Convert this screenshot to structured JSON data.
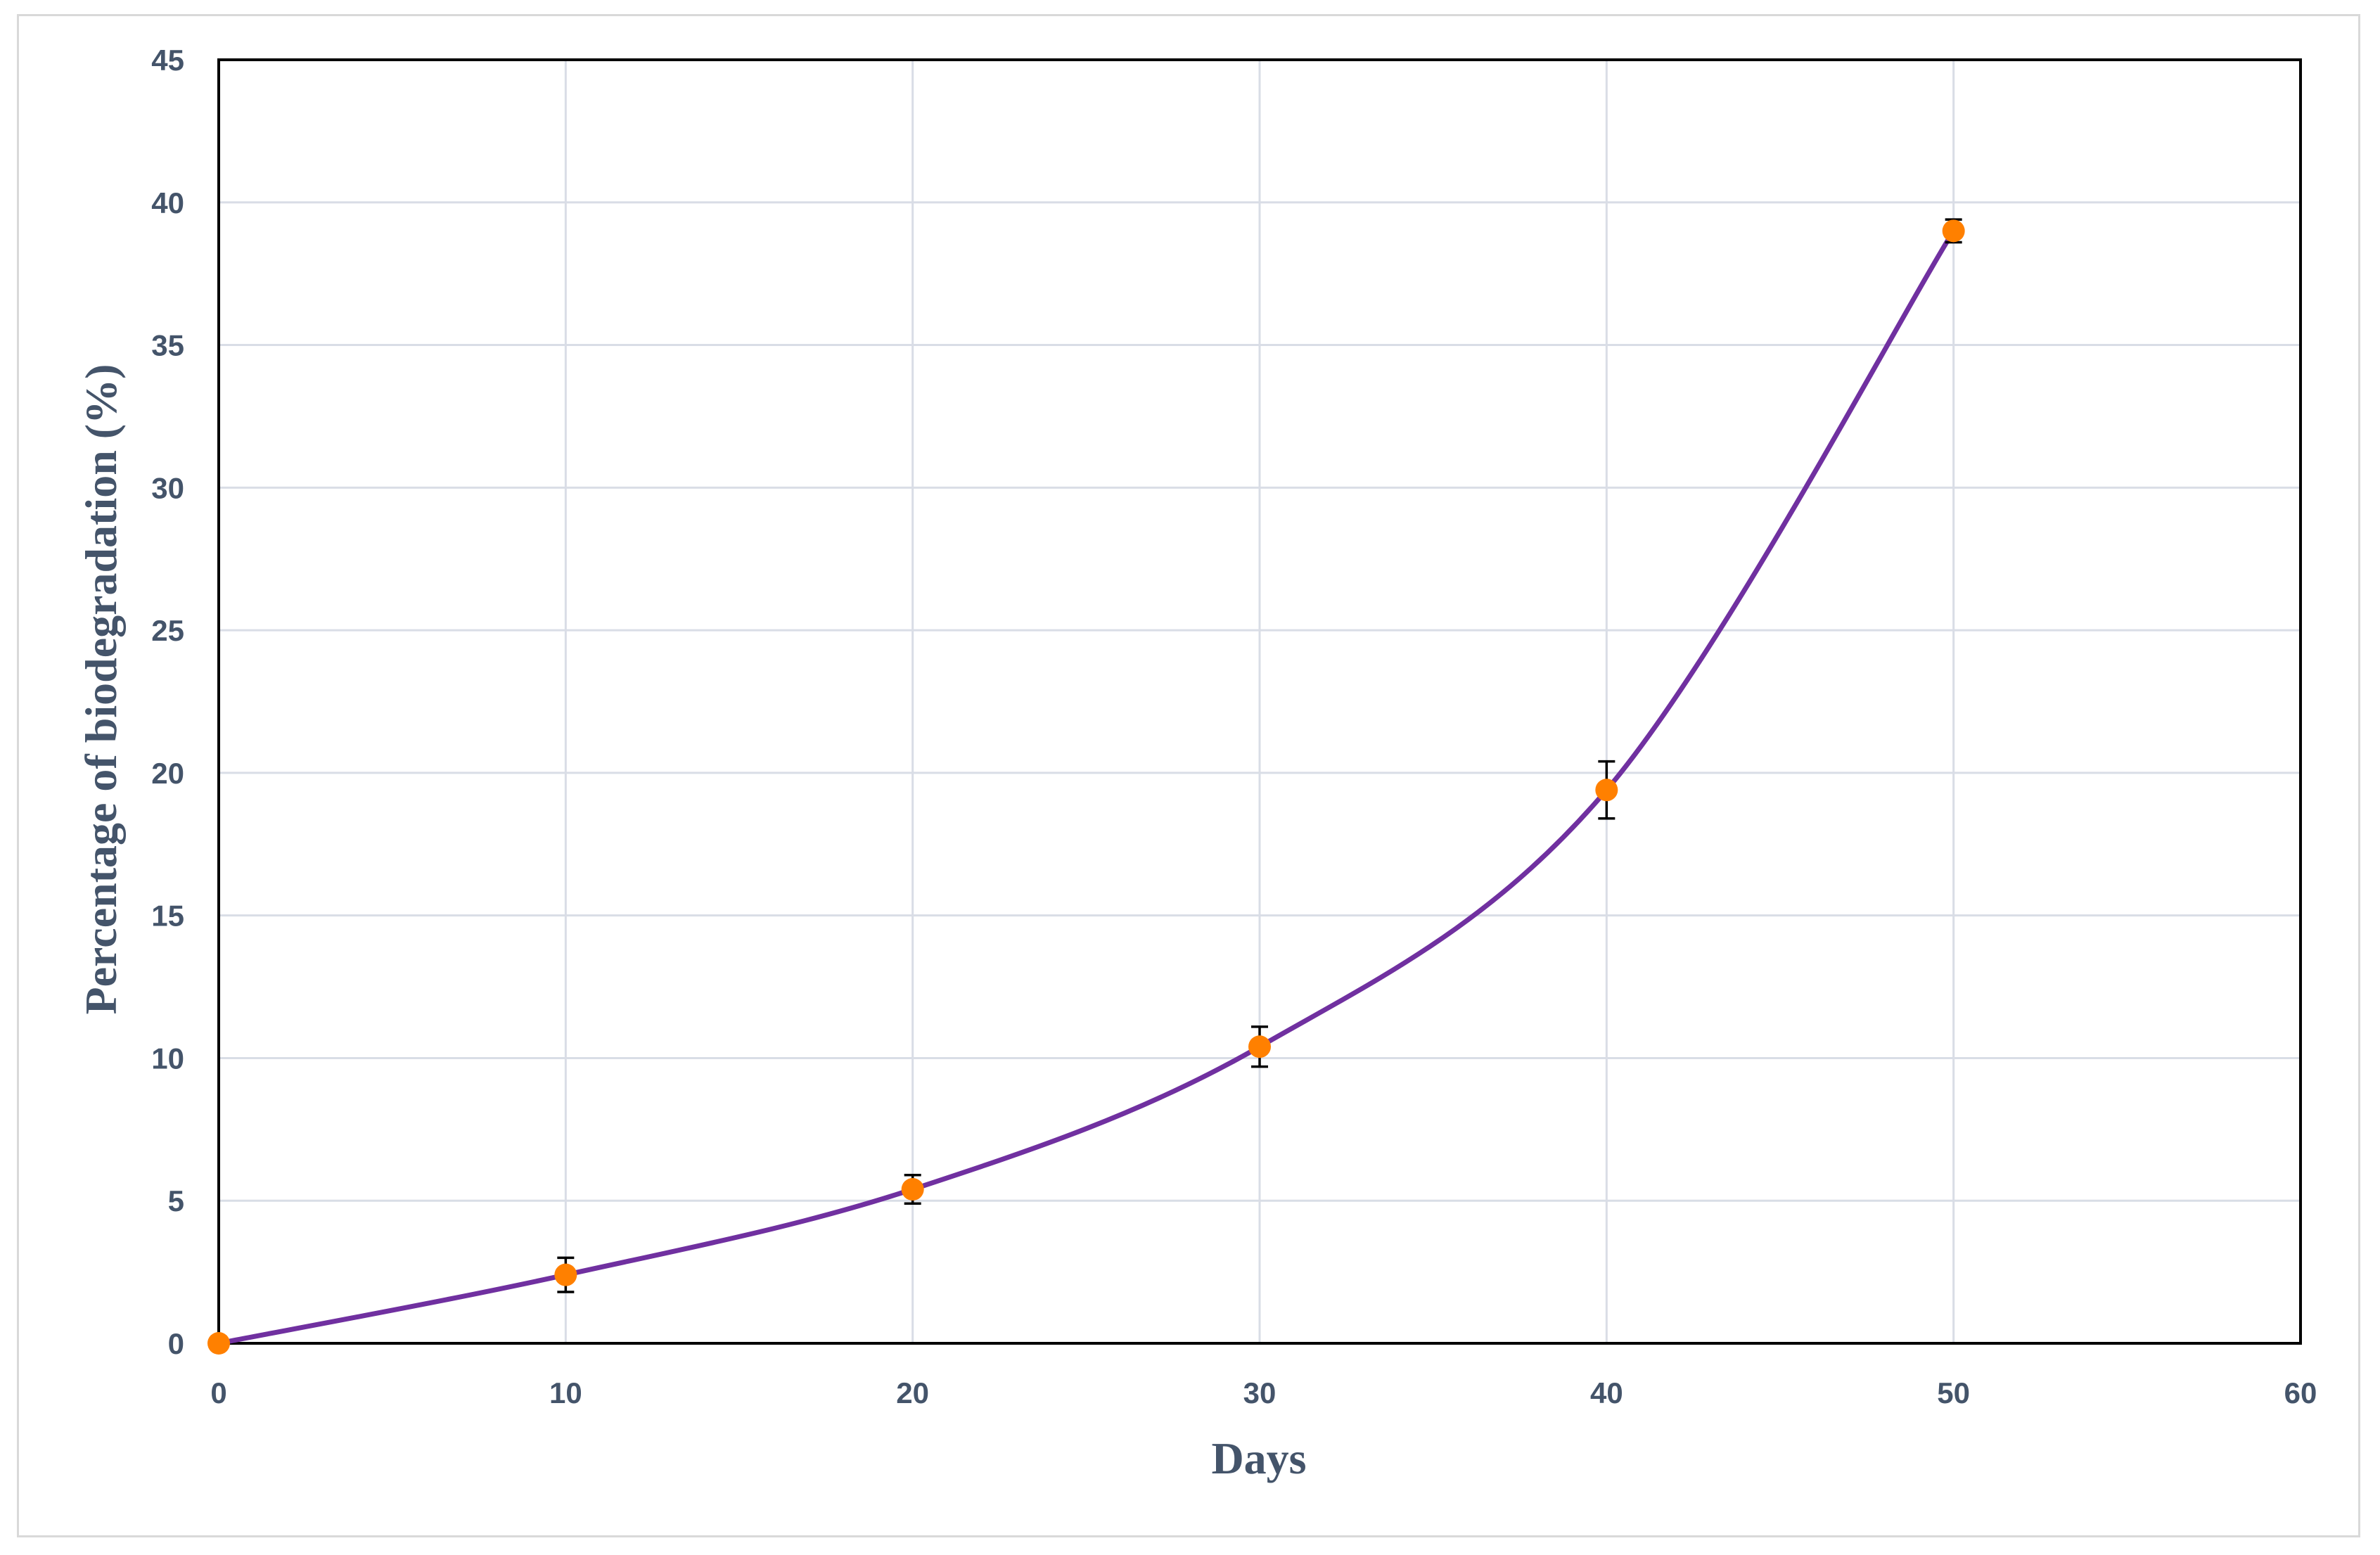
{
  "chart_data": {
    "type": "line",
    "title": "",
    "xlabel": "Days",
    "ylabel": "Percentage of biodegradation (%)",
    "xlim": [
      0,
      60
    ],
    "ylim": [
      0,
      45
    ],
    "x_ticks": [
      0,
      10,
      20,
      30,
      40,
      50,
      60
    ],
    "y_ticks": [
      0,
      5,
      10,
      15,
      20,
      25,
      30,
      35,
      40,
      45
    ],
    "grid": true,
    "legend": "none",
    "smooth": true,
    "line_color": "#7030a0",
    "marker_color": "#ff8000",
    "series": [
      {
        "x": [
          0,
          10,
          20,
          30,
          40,
          50
        ],
        "y": [
          0,
          2.4,
          5.4,
          10.4,
          19.4,
          39.0
        ],
        "error": [
          0,
          0.6,
          0.5,
          0.7,
          1.0,
          0.4
        ]
      }
    ]
  }
}
